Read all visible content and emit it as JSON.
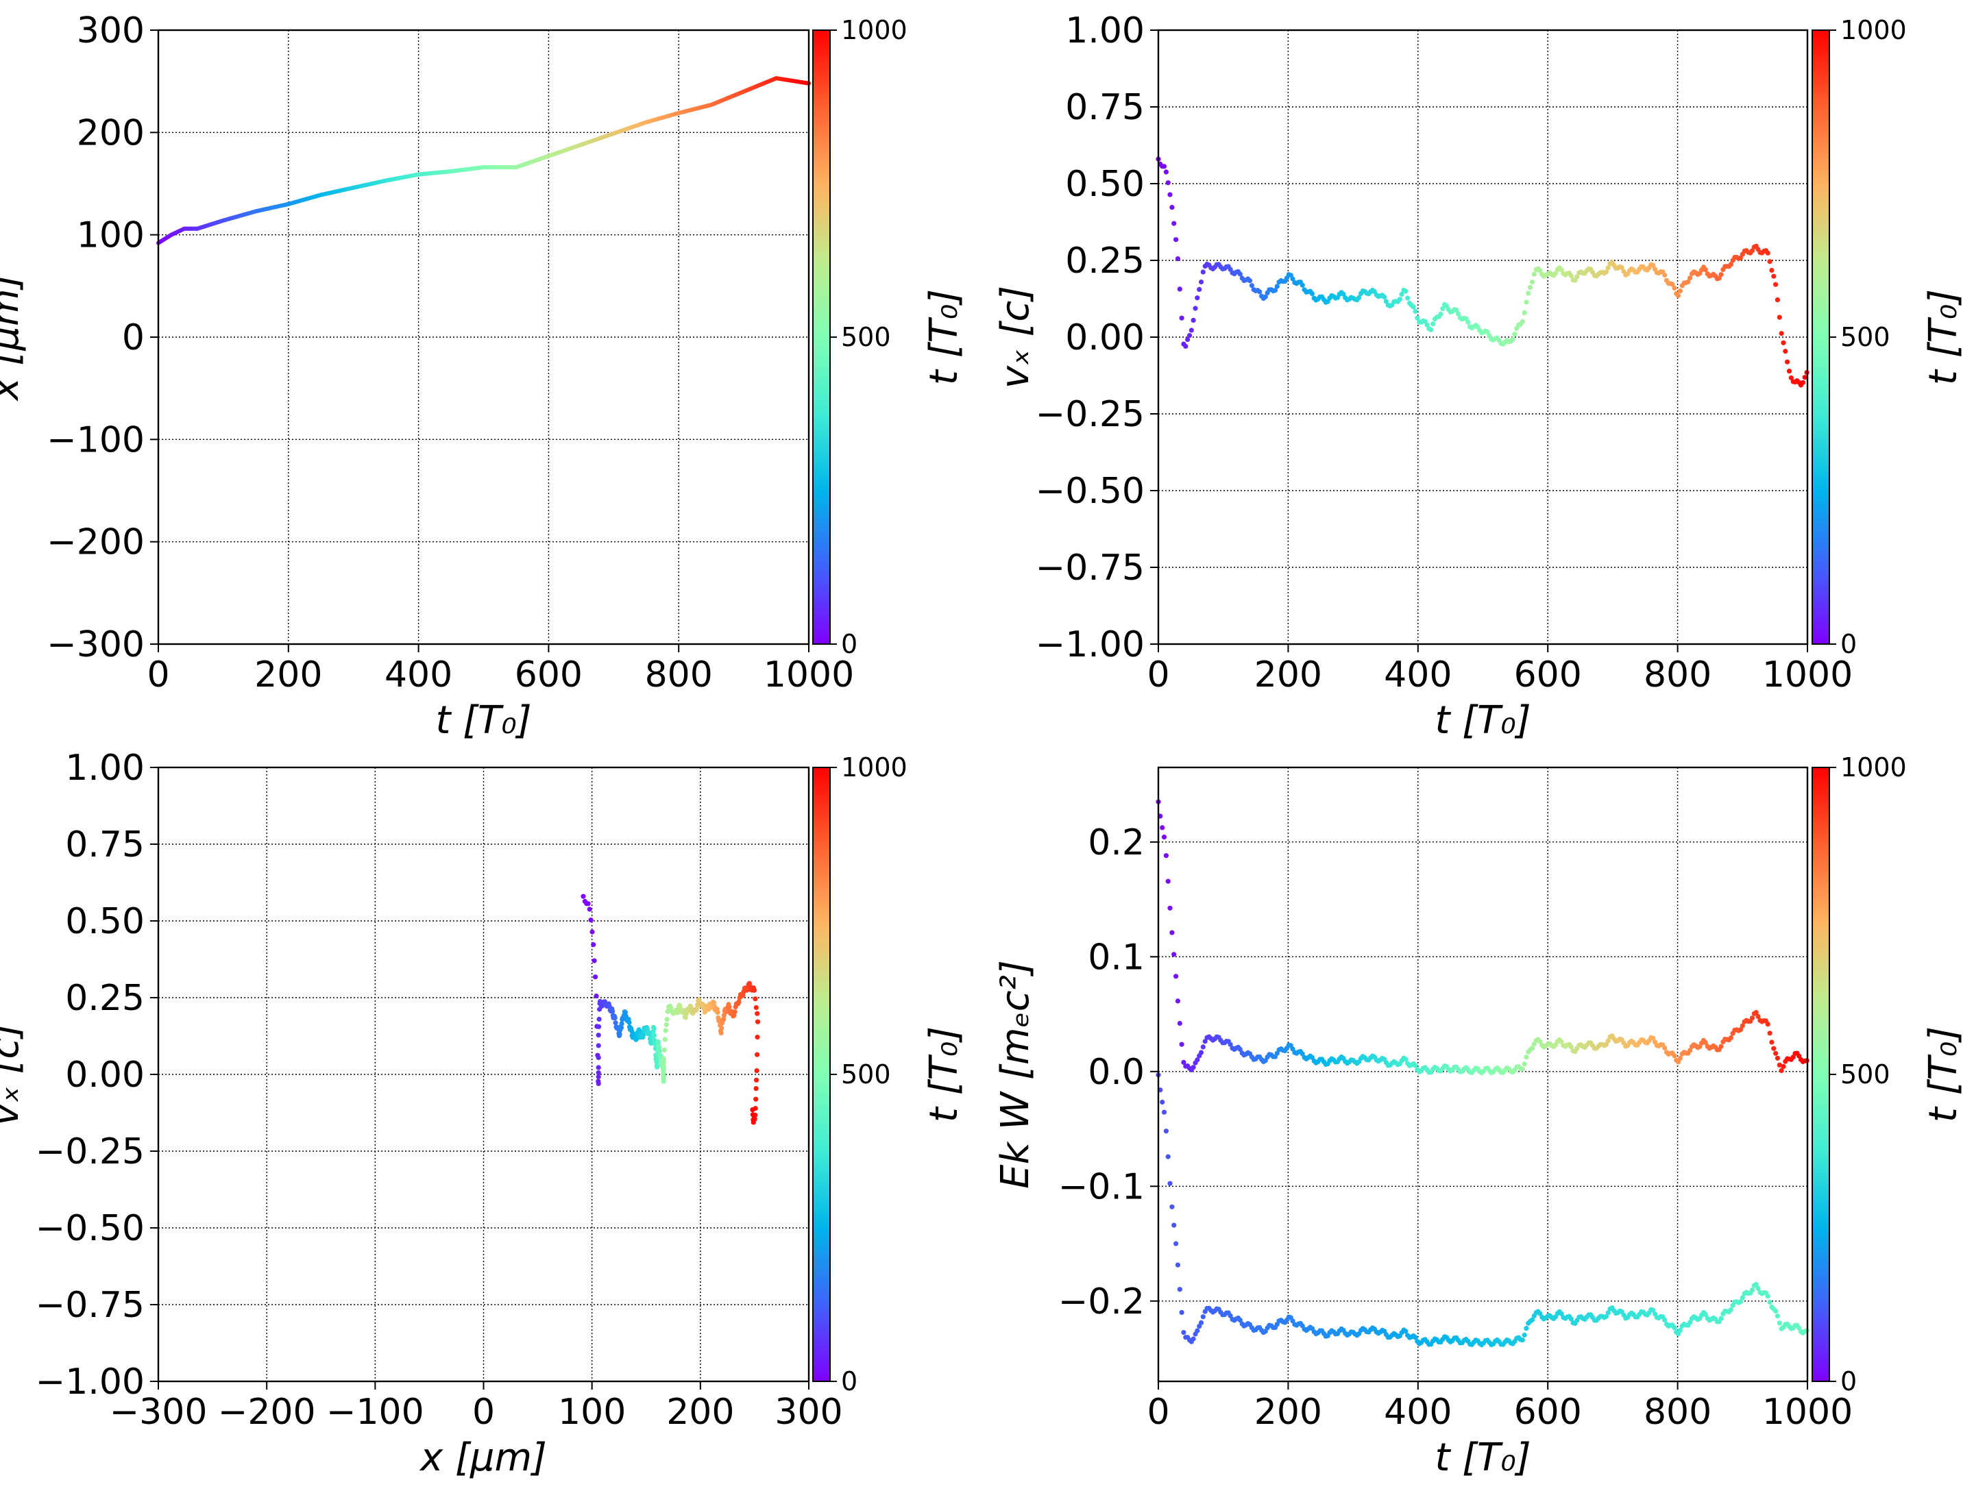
{
  "chart_data": [
    {
      "type": "line",
      "panel": "top-left",
      "xlabel": "t  [T₀]",
      "ylabel": "x  [μm]",
      "xlim": [
        0,
        1000
      ],
      "ylim": [
        -300,
        300
      ],
      "xticks": [
        "0",
        "200",
        "400",
        "600",
        "800",
        "1000"
      ],
      "yticks": [
        "−300",
        "−200",
        "−100",
        "0",
        "100",
        "200",
        "300"
      ],
      "grid": true,
      "colormap": "rainbow",
      "colorbar": {
        "label": "t [T₀]",
        "range": [
          0,
          1000
        ],
        "ticks": [
          "0",
          "500",
          "1000"
        ]
      },
      "series": [
        {
          "x": [
            0,
            20,
            40,
            60,
            100,
            150,
            200,
            250,
            300,
            350,
            400,
            450,
            500,
            550,
            600,
            650,
            700,
            750,
            800,
            850,
            900,
            950,
            1000
          ],
          "y": [
            92,
            100,
            106,
            106,
            114,
            123,
            130,
            139,
            146,
            153,
            159,
            162,
            166,
            166,
            177,
            188,
            199,
            210,
            219,
            227,
            240,
            253,
            248
          ]
        }
      ]
    },
    {
      "type": "scatter",
      "panel": "top-right",
      "xlabel": "t [T₀]",
      "ylabel": "vₓ [c]",
      "xlim": [
        0,
        1000
      ],
      "ylim": [
        -1.0,
        1.0
      ],
      "xticks": [
        "0",
        "200",
        "400",
        "600",
        "800",
        "1000"
      ],
      "yticks": [
        "−1.00",
        "−0.75",
        "−0.50",
        "−0.25",
        "0.00",
        "0.25",
        "0.50",
        "0.75",
        "1.00"
      ],
      "grid": true,
      "colormap": "rainbow",
      "colorbar": {
        "label": "t [T₀]",
        "range": [
          0,
          1000
        ],
        "ticks": [
          "0",
          "500",
          "1000"
        ]
      },
      "series": [
        {
          "x": [
            0,
            10,
            20,
            30,
            40,
            50,
            60,
            70,
            80,
            100,
            120,
            140,
            160,
            180,
            200,
            220,
            240,
            260,
            280,
            300,
            320,
            340,
            360,
            380,
            400,
            420,
            440,
            460,
            480,
            500,
            520,
            540,
            560,
            580,
            600,
            620,
            640,
            660,
            680,
            700,
            720,
            740,
            760,
            780,
            800,
            820,
            840,
            860,
            880,
            900,
            920,
            940,
            950,
            960,
            970,
            980,
            990,
            1000
          ],
          "y": [
            0.58,
            0.55,
            0.45,
            0.25,
            -0.05,
            0.02,
            0.12,
            0.23,
            0.23,
            0.23,
            0.21,
            0.18,
            0.13,
            0.16,
            0.2,
            0.17,
            0.13,
            0.12,
            0.14,
            0.12,
            0.15,
            0.14,
            0.1,
            0.15,
            0.06,
            0.03,
            0.1,
            0.08,
            0.04,
            0.02,
            -0.01,
            -0.02,
            0.05,
            0.22,
            0.2,
            0.22,
            0.19,
            0.22,
            0.2,
            0.24,
            0.21,
            0.22,
            0.23,
            0.2,
            0.14,
            0.2,
            0.22,
            0.19,
            0.24,
            0.27,
            0.29,
            0.27,
            0.18,
            0.02,
            -0.1,
            -0.15,
            -0.15,
            -0.12
          ]
        }
      ]
    },
    {
      "type": "scatter",
      "panel": "bottom-left",
      "xlabel": "x [μm]",
      "ylabel": "vₓ [c]",
      "xlim": [
        -300,
        300
      ],
      "ylim": [
        -1.0,
        1.0
      ],
      "xticks": [
        "−300",
        "−200",
        "−100",
        "0",
        "100",
        "200",
        "300"
      ],
      "yticks": [
        "−1.00",
        "−0.75",
        "−0.50",
        "−0.25",
        "0.00",
        "0.25",
        "0.50",
        "0.75",
        "1.00"
      ],
      "grid": true,
      "colormap": "rainbow",
      "colorbar": {
        "label": "t [T₀]",
        "range": [
          0,
          1000
        ],
        "ticks": [
          "0",
          "500",
          "1000"
        ]
      },
      "series": [
        {
          "t": [
            0,
            10,
            20,
            30,
            40,
            50,
            60,
            70,
            80,
            100,
            120,
            140,
            160,
            180,
            200,
            220,
            240,
            260,
            280,
            300,
            320,
            340,
            360,
            380,
            400,
            420,
            440,
            460,
            480,
            500,
            520,
            540,
            560,
            580,
            600,
            620,
            640,
            660,
            680,
            700,
            720,
            740,
            760,
            780,
            800,
            820,
            840,
            860,
            880,
            900,
            920,
            940,
            950,
            960,
            970,
            980,
            990,
            1000
          ],
          "x": [
            92,
            97,
            101,
            104,
            106,
            106,
            106,
            107,
            108,
            114,
            118,
            121,
            125,
            127,
            130,
            134,
            137,
            141,
            143,
            146,
            149,
            152,
            155,
            157,
            159,
            160,
            161,
            162,
            164,
            166,
            166,
            166,
            166,
            170,
            177,
            181,
            186,
            190,
            194,
            199,
            204,
            208,
            212,
            216,
            219,
            222,
            226,
            230,
            235,
            240,
            245,
            250,
            253,
            252,
            251,
            250,
            249,
            248
          ],
          "y": [
            0.58,
            0.55,
            0.45,
            0.25,
            -0.05,
            0.02,
            0.12,
            0.23,
            0.23,
            0.23,
            0.21,
            0.18,
            0.13,
            0.16,
            0.2,
            0.17,
            0.13,
            0.12,
            0.14,
            0.12,
            0.15,
            0.14,
            0.1,
            0.15,
            0.06,
            0.03,
            0.1,
            0.08,
            0.04,
            0.02,
            -0.01,
            -0.02,
            0.05,
            0.22,
            0.2,
            0.22,
            0.19,
            0.22,
            0.2,
            0.24,
            0.21,
            0.22,
            0.23,
            0.2,
            0.14,
            0.2,
            0.22,
            0.19,
            0.24,
            0.27,
            0.29,
            0.27,
            0.18,
            0.02,
            -0.1,
            -0.15,
            -0.15,
            -0.12
          ]
        }
      ]
    },
    {
      "type": "scatter",
      "panel": "bottom-right",
      "xlabel": "t [T₀]",
      "ylabel": "Ek W [mₑc²]",
      "xlim": [
        0,
        1000
      ],
      "ylim": [
        -0.27,
        0.265
      ],
      "xticks": [
        "0",
        "200",
        "400",
        "600",
        "800",
        "1000"
      ],
      "yticks": [
        "−0.2",
        "−0.1",
        "0.0",
        "0.1",
        "0.2"
      ],
      "grid": true,
      "colormap": "rainbow",
      "colorbar": {
        "label": "t [T₀]",
        "range": [
          0,
          1000
        ],
        "ticks": [
          "0",
          "500",
          "1000"
        ]
      },
      "series": [
        {
          "x": [
            0,
            10,
            20,
            30,
            40,
            50,
            60,
            70,
            80,
            100,
            120,
            140,
            160,
            180,
            200,
            220,
            240,
            260,
            280,
            300,
            320,
            340,
            360,
            380,
            400,
            420,
            440,
            460,
            480,
            500,
            520,
            540,
            560,
            580,
            600,
            620,
            640,
            660,
            680,
            700,
            720,
            740,
            760,
            780,
            800,
            820,
            840,
            860,
            880,
            900,
            920,
            940,
            950,
            960,
            970,
            980,
            990,
            1000
          ],
          "y": [
            0.235,
            0.2,
            0.13,
            0.06,
            0.003,
            0.003,
            0.008,
            0.025,
            0.03,
            0.027,
            0.02,
            0.014,
            0.01,
            0.015,
            0.022,
            0.015,
            0.01,
            0.008,
            0.011,
            0.008,
            0.012,
            0.011,
            0.006,
            0.01,
            0.002,
            0.001,
            0.003,
            0.002,
            0.001,
            0.001,
            0.001,
            0.001,
            0.003,
            0.027,
            0.022,
            0.026,
            0.019,
            0.024,
            0.021,
            0.03,
            0.024,
            0.025,
            0.028,
            0.02,
            0.01,
            0.02,
            0.025,
            0.019,
            0.03,
            0.04,
            0.05,
            0.04,
            0.015,
            0.003,
            0.01,
            0.015,
            0.012,
            0.007
          ]
        },
        {
          "x": [
            0,
            10,
            20,
            30,
            40,
            50,
            60,
            70,
            80,
            100,
            120,
            140,
            160,
            180,
            200,
            220,
            240,
            260,
            280,
            300,
            320,
            340,
            360,
            380,
            400,
            420,
            440,
            460,
            480,
            500,
            520,
            540,
            560,
            580,
            600,
            620,
            640,
            660,
            680,
            700,
            720,
            740,
            760,
            780,
            800,
            820,
            840,
            860,
            880,
            900,
            920,
            940,
            960,
            980,
            1000
          ],
          "y": [
            -0.003,
            -0.04,
            -0.11,
            -0.17,
            -0.233,
            -0.234,
            -0.228,
            -0.21,
            -0.207,
            -0.21,
            -0.216,
            -0.222,
            -0.226,
            -0.221,
            -0.215,
            -0.222,
            -0.226,
            -0.229,
            -0.226,
            -0.229,
            -0.225,
            -0.226,
            -0.231,
            -0.227,
            -0.235,
            -0.236,
            -0.233,
            -0.234,
            -0.236,
            -0.236,
            -0.236,
            -0.236,
            -0.233,
            -0.21,
            -0.215,
            -0.211,
            -0.218,
            -0.213,
            -0.216,
            -0.207,
            -0.213,
            -0.212,
            -0.209,
            -0.217,
            -0.227,
            -0.217,
            -0.212,
            -0.218,
            -0.207,
            -0.197,
            -0.187,
            -0.197,
            -0.222,
            -0.222,
            -0.228
          ]
        }
      ]
    }
  ]
}
